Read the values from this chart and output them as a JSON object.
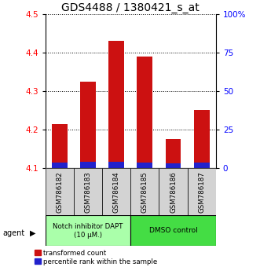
{
  "title": "GDS4488 / 1380421_s_at",
  "samples": [
    "GSM786182",
    "GSM786183",
    "GSM786184",
    "GSM786185",
    "GSM786186",
    "GSM786187"
  ],
  "bar_base": 4.1,
  "red_tops": [
    4.215,
    4.325,
    4.43,
    4.39,
    4.175,
    4.25
  ],
  "blue_tops": [
    4.115,
    4.117,
    4.116,
    4.115,
    4.112,
    4.115
  ],
  "ylim_left": [
    4.1,
    4.5
  ],
  "ylim_right": [
    0,
    100
  ],
  "yticks_left": [
    4.1,
    4.2,
    4.3,
    4.4,
    4.5
  ],
  "yticks_right_vals": [
    0,
    25,
    50,
    75,
    100
  ],
  "yticks_right_labels": [
    "0",
    "25",
    "50",
    "75",
    "100%"
  ],
  "group1_label": "Notch inhibitor DAPT\n(10 μM.)",
  "group2_label": "DMSO control",
  "agent_label": "agent",
  "legend1": "transformed count",
  "legend2": "percentile rank within the sample",
  "bar_color_red": "#cc1111",
  "bar_color_blue": "#2222cc",
  "group1_color": "#aaffaa",
  "group2_color": "#44dd44",
  "bar_width": 0.55,
  "title_fontsize": 10,
  "tick_fontsize": 7.5,
  "label_fontsize": 7
}
